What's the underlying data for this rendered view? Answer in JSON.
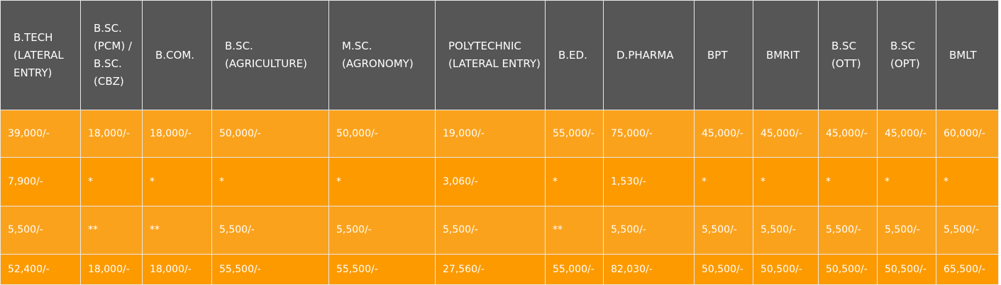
{
  "table": {
    "headers": [
      "B.TECH (LATERAL ENTRY)",
      "B.SC. (PCM) / B.SC. (CBZ)",
      "B.COM.",
      "B.SC. (AGRICULTURE)",
      "M.SC. (AGRONOMY)",
      "POLYTECHNIC (LATERAL ENTRY)",
      "B.ED.",
      "D.PHARMA",
      "BPT",
      "BMRIT",
      "B.SC (OTT)",
      "B.SC (OPT)",
      "BMLT"
    ],
    "rows": [
      [
        "39,000/-",
        "18,000/-",
        "18,000/-",
        "50,000/-",
        "50,000/-",
        "19,000/-",
        "55,000/-",
        "75,000/-",
        "45,000/-",
        "45,000/-",
        "45,000/-",
        "45,000/-",
        "60,000/-"
      ],
      [
        "7,900/-",
        "*",
        "*",
        "*",
        "*",
        "3,060/-",
        "*",
        "1,530/-",
        "*",
        "*",
        "*",
        "*",
        "*"
      ],
      [
        "5,500/-",
        "**",
        "**",
        "5,500/-",
        "5,500/-",
        "5,500/-",
        "**",
        "5,500/-",
        "5,500/-",
        "5,500/-",
        "5,500/-",
        "5,500/-",
        "5,500/-"
      ],
      [
        "52,400/-",
        "18,000/-",
        "18,000/-",
        "55,500/-",
        "55,500/-",
        "27,560/-",
        "55,000/-",
        "82,030/-",
        "50,500/-",
        "50,500/-",
        "50,500/-",
        "50,500/-",
        "65,500/-"
      ]
    ]
  },
  "colors": {
    "header_bg": "#565656",
    "row_light": "#fba21c",
    "row_dark": "#fc9a00",
    "text": "#ffffff",
    "border": "#e8e8e8"
  }
}
